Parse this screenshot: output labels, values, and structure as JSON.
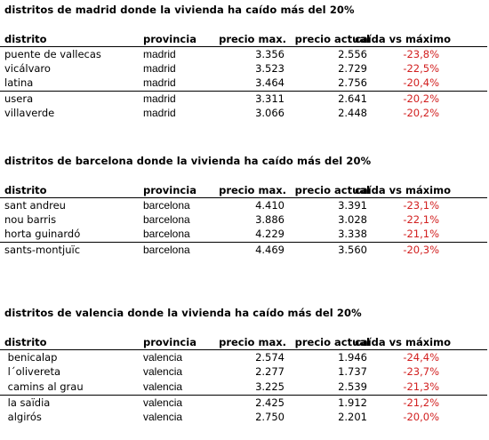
{
  "headers": {
    "distrito": "distrito",
    "provincia": "provincia",
    "precio_max": "precio max.",
    "precio_actual": "precio actual",
    "caida": "caída vs máximo"
  },
  "colors": {
    "drop": "#d22020",
    "text": "#000000",
    "background": "#ffffff"
  },
  "sections": [
    {
      "title": "distritos de madrid donde la vivienda ha caído más del 20%",
      "rows": [
        {
          "distrito": "puente de vallecas",
          "provincia": "madrid",
          "precio_max": "3.356",
          "precio_actual": "2.556",
          "caida": "-23,8%"
        },
        {
          "distrito": "vicálvaro",
          "provincia": "madrid",
          "precio_max": "3.523",
          "precio_actual": "2.729",
          "caida": "-22,5%"
        },
        {
          "distrito": "latina",
          "provincia": "madrid",
          "precio_max": "3.464",
          "precio_actual": "2.756",
          "caida": "-20,4%"
        },
        {
          "distrito": "usera",
          "provincia": "madrid",
          "precio_max": "3.311",
          "precio_actual": "2.641",
          "caida": "-20,2%"
        },
        {
          "distrito": "villaverde",
          "provincia": "madrid",
          "precio_max": "3.066",
          "precio_actual": "2.448",
          "caida": "-20,2%"
        }
      ]
    },
    {
      "title": "distritos de barcelona donde la vivienda ha caído más del 20%",
      "rows": [
        {
          "distrito": "sant andreu",
          "provincia": "barcelona",
          "precio_max": "4.410",
          "precio_actual": "3.391",
          "caida": "-23,1%"
        },
        {
          "distrito": "nou barris",
          "provincia": "barcelona",
          "precio_max": "3.886",
          "precio_actual": "3.028",
          "caida": "-22,1%"
        },
        {
          "distrito": "horta guinardó",
          "provincia": "barcelona",
          "precio_max": "4.229",
          "precio_actual": "3.338",
          "caida": "-21,1%"
        },
        {
          "distrito": "sants-montjuïc",
          "provincia": "barcelona",
          "precio_max": "4.469",
          "precio_actual": "3.560",
          "caida": "-20,3%"
        }
      ]
    },
    {
      "title": "distritos de valencia donde la vivienda ha caído más del 20%",
      "rows": [
        {
          "distrito": " benicalap",
          "provincia": "valencia",
          "precio_max": "2.574",
          "precio_actual": "1.946",
          "caida": "-24,4%"
        },
        {
          "distrito": " l´olivereta",
          "provincia": "valencia",
          "precio_max": "2.277",
          "precio_actual": "1.737",
          "caida": "-23,7%"
        },
        {
          "distrito": " camins al grau",
          "provincia": "valencia",
          "precio_max": "3.225",
          "precio_actual": "2.539",
          "caida": "-21,3%"
        },
        {
          "distrito": " la saïdia",
          "provincia": "valencia",
          "precio_max": "2.425",
          "precio_actual": "1.912",
          "caida": "-21,2%"
        },
        {
          "distrito": " algirós",
          "provincia": "valencia",
          "precio_max": "2.750",
          "precio_actual": "2.201",
          "caida": "-20,0%"
        }
      ]
    }
  ]
}
